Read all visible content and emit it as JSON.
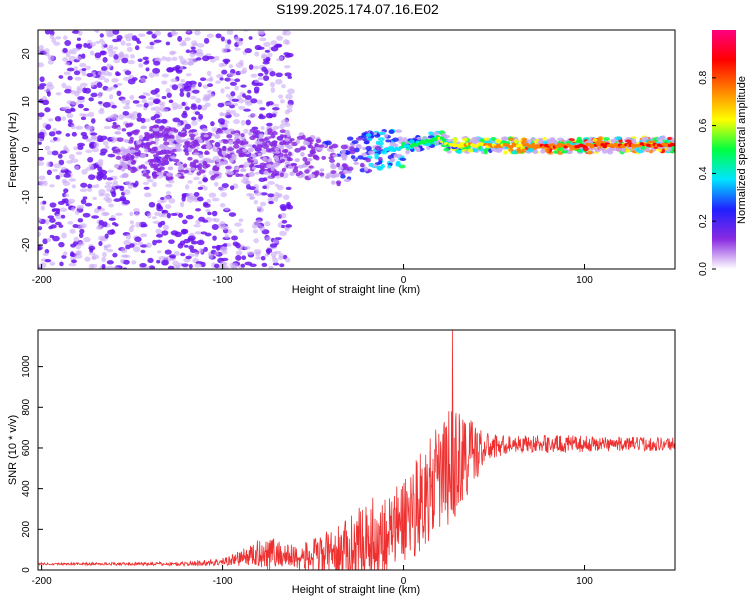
{
  "title": "S199.2025.174.07.16.E02",
  "colors": {
    "spectrogram_point": "#6a14f0",
    "spectrogram_faint": "#c9a8f5",
    "snr_line": "#ee3030",
    "colorbar": [
      "#ffffff",
      "#8a2be2",
      "#2020ff",
      "#00e5ff",
      "#00ff40",
      "#ffff00",
      "#ff7f00",
      "#ff0000",
      "#ff0080"
    ]
  },
  "chart_data": [
    {
      "type": "heatmap",
      "title": "",
      "xlabel": "Height of straight line (km)",
      "ylabel": "Frequency (Hz)",
      "xlim": [
        -202,
        150
      ],
      "ylim": [
        -25,
        25
      ],
      "xticks": [
        -200,
        -100,
        0,
        100
      ],
      "yticks": [
        -20,
        -10,
        0,
        10,
        20
      ],
      "colorbar": {
        "label": "Normalized spectral amplitude",
        "range": [
          0,
          1
        ],
        "ticks": [
          "0.0",
          "0.2",
          "0.4",
          "0.6",
          "0.8"
        ]
      },
      "ridge": {
        "x": [
          -155,
          -120,
          -100,
          -80,
          -60,
          -45,
          -35,
          -25,
          -15,
          -5,
          5,
          15,
          20,
          25,
          30,
          45,
          60,
          80,
          100,
          120,
          150
        ],
        "frequency": [
          0,
          -1,
          -1,
          -0.5,
          -1,
          -2,
          -3,
          -1,
          0,
          0,
          1,
          2,
          2.5,
          1,
          1,
          0.8,
          0.8,
          0.8,
          0.8,
          0.9,
          1
        ],
        "amplitude": [
          0.1,
          0.12,
          0.15,
          0.15,
          0.18,
          0.2,
          0.25,
          0.3,
          0.4,
          0.45,
          0.5,
          0.55,
          0.6,
          0.65,
          0.7,
          0.75,
          0.8,
          0.85,
          0.9,
          0.9,
          0.9
        ]
      }
    },
    {
      "type": "line",
      "title": "",
      "xlabel": "Height of straight line (km)",
      "ylabel": "SNR (10 * v/v)",
      "xlim": [
        -202,
        150
      ],
      "ylim": [
        0,
        1180
      ],
      "xticks": [
        -200,
        -100,
        0,
        100
      ],
      "yticks": [
        0,
        200,
        400,
        600,
        800,
        1000
      ],
      "envelope": {
        "x": [
          -202,
          -150,
          -120,
          -100,
          -85,
          -75,
          -65,
          -55,
          -45,
          -35,
          -25,
          -15,
          -5,
          5,
          15,
          25,
          35,
          45,
          60,
          80,
          100,
          120,
          150
        ],
        "base": [
          30,
          30,
          30,
          40,
          70,
          90,
          70,
          60,
          70,
          90,
          120,
          160,
          200,
          300,
          400,
          500,
          560,
          600,
          620,
          620,
          620,
          620,
          620
        ],
        "spread": [
          10,
          15,
          20,
          40,
          100,
          180,
          120,
          150,
          220,
          260,
          380,
          420,
          400,
          500,
          500,
          600,
          450,
          150,
          80,
          90,
          80,
          70,
          70
        ]
      },
      "peak": {
        "x": 27,
        "y": 1180
      }
    }
  ]
}
